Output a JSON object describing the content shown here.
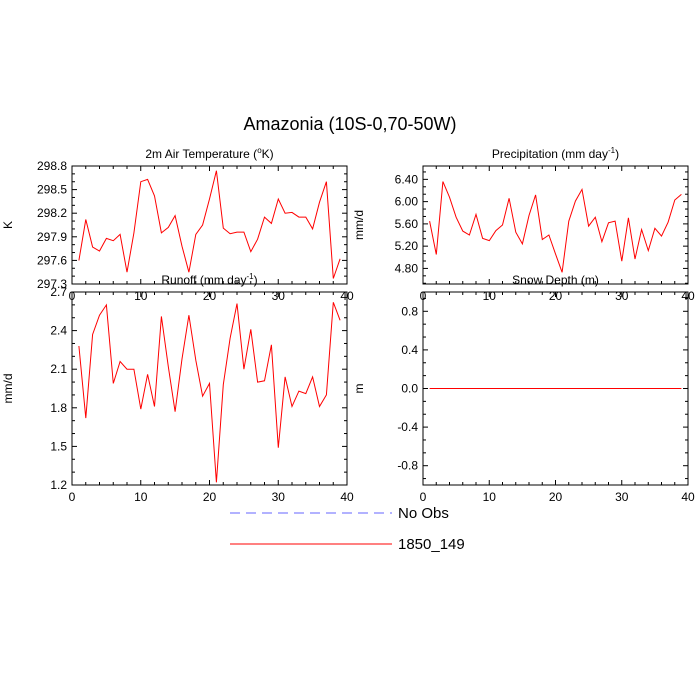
{
  "title": "Amazonia (10S-0,70-50W)",
  "chart_data": [
    {
      "type": "line",
      "title_main": "2m Air Temperature (",
      "title_sup": "o",
      "title_end": "K)",
      "ylabel": "K",
      "xlim": [
        0,
        40
      ],
      "ylim": [
        297.3,
        298.8
      ],
      "xticks": [
        0,
        10,
        20,
        30,
        40
      ],
      "yticks": [
        297.3,
        297.6,
        297.9,
        298.2,
        298.5,
        298.8
      ],
      "ytick_labels": [
        "297.3",
        "297.6",
        "297.9",
        "298.2",
        "298.5",
        "298.8"
      ],
      "series": [
        {
          "name": "1850_149",
          "color": "#ff0000",
          "x": [
            1,
            2,
            3,
            4,
            5,
            6,
            7,
            8,
            9,
            10,
            11,
            12,
            13,
            14,
            15,
            16,
            17,
            18,
            19,
            20,
            21,
            22,
            23,
            24,
            25,
            26,
            27,
            28,
            29,
            30,
            31,
            32,
            33,
            34,
            35,
            36,
            37,
            38,
            39
          ],
          "values": [
            297.6,
            298.12,
            297.77,
            297.72,
            297.88,
            297.85,
            297.93,
            297.45,
            297.95,
            298.6,
            298.63,
            298.42,
            297.95,
            298.02,
            298.17,
            297.78,
            297.45,
            297.93,
            298.05,
            298.38,
            298.74,
            298.01,
            297.94,
            297.96,
            297.96,
            297.71,
            297.87,
            298.15,
            298.07,
            298.38,
            298.2,
            298.21,
            298.15,
            298.15,
            298.0,
            298.34,
            298.6,
            297.37,
            297.62
          ]
        }
      ]
    },
    {
      "type": "line",
      "title_main": "Precipitation (mm day",
      "title_sup": "-1",
      "title_end": ")",
      "ylabel": "mm/d",
      "xlim": [
        0,
        40
      ],
      "ylim": [
        4.52,
        6.64
      ],
      "xticks": [
        0,
        10,
        20,
        30,
        40
      ],
      "yticks": [
        4.8,
        5.2,
        5.6,
        6.0,
        6.4
      ],
      "ytick_labels": [
        "4.80",
        "5.20",
        "5.60",
        "6.00",
        "6.40"
      ],
      "series": [
        {
          "name": "1850_149",
          "color": "#ff0000",
          "x": [
            1,
            2,
            3,
            4,
            5,
            6,
            7,
            8,
            9,
            10,
            11,
            12,
            13,
            14,
            15,
            16,
            17,
            18,
            19,
            20,
            21,
            22,
            23,
            24,
            25,
            26,
            27,
            28,
            29,
            30,
            31,
            32,
            33,
            34,
            35,
            36,
            37,
            38,
            39
          ],
          "values": [
            5.65,
            5.05,
            6.36,
            6.08,
            5.72,
            5.47,
            5.4,
            5.77,
            5.34,
            5.3,
            5.48,
            5.58,
            6.06,
            5.45,
            5.24,
            5.75,
            6.12,
            5.32,
            5.4,
            5.06,
            4.73,
            5.65,
            6.01,
            6.22,
            5.56,
            5.72,
            5.28,
            5.62,
            5.65,
            4.93,
            5.71,
            4.97,
            5.5,
            5.12,
            5.52,
            5.38,
            5.63,
            6.03,
            6.13
          ]
        }
      ]
    },
    {
      "type": "line",
      "title_main": "Runoff (mm day",
      "title_sup": "-1",
      "title_end": ")",
      "ylabel": "mm/d",
      "xlim": [
        0,
        40
      ],
      "ylim": [
        1.2,
        2.7
      ],
      "xticks": [
        0,
        10,
        20,
        30,
        40
      ],
      "yticks": [
        1.2,
        1.5,
        1.8,
        2.1,
        2.4,
        2.7
      ],
      "ytick_labels": [
        "1.2",
        "1.5",
        "1.8",
        "2.1",
        "2.4",
        "2.7"
      ],
      "series": [
        {
          "name": "1850_149",
          "color": "#ff0000",
          "x": [
            1,
            2,
            3,
            4,
            5,
            6,
            7,
            8,
            9,
            10,
            11,
            12,
            13,
            14,
            15,
            16,
            17,
            18,
            19,
            20,
            21,
            22,
            23,
            24,
            25,
            26,
            27,
            28,
            29,
            30,
            31,
            32,
            33,
            34,
            35,
            36,
            37,
            38,
            39
          ],
          "values": [
            2.28,
            1.72,
            2.37,
            2.52,
            2.6,
            1.99,
            2.16,
            2.1,
            2.1,
            1.79,
            2.06,
            1.81,
            2.51,
            2.12,
            1.77,
            2.18,
            2.52,
            2.17,
            1.89,
            1.99,
            1.22,
            1.98,
            2.34,
            2.61,
            2.1,
            2.41,
            2.0,
            2.01,
            2.29,
            1.49,
            2.04,
            1.81,
            1.93,
            1.91,
            2.04,
            1.81,
            1.9,
            2.62,
            2.48
          ]
        }
      ]
    },
    {
      "type": "line",
      "title_main": "Snow Depth (m)",
      "title_sup": "",
      "title_end": "",
      "ylabel": "m",
      "xlim": [
        0,
        40
      ],
      "ylim": [
        -1.0,
        1.0
      ],
      "xticks": [
        0,
        10,
        20,
        30,
        40
      ],
      "yticks": [
        -0.8,
        -0.4,
        0.0,
        0.4,
        0.8
      ],
      "ytick_labels": [
        "-0.8",
        "-0.4",
        "0.0",
        "0.4",
        "0.8"
      ],
      "series": [
        {
          "name": "1850_149",
          "color": "#ff0000",
          "x": [
            1,
            39
          ],
          "values": [
            0.0,
            0.0
          ]
        }
      ]
    }
  ],
  "legend": [
    {
      "label": "No Obs",
      "color": "#6666ff",
      "style": "dashed"
    },
    {
      "label": "1850_149",
      "color": "#ff0000",
      "style": "solid"
    }
  ]
}
